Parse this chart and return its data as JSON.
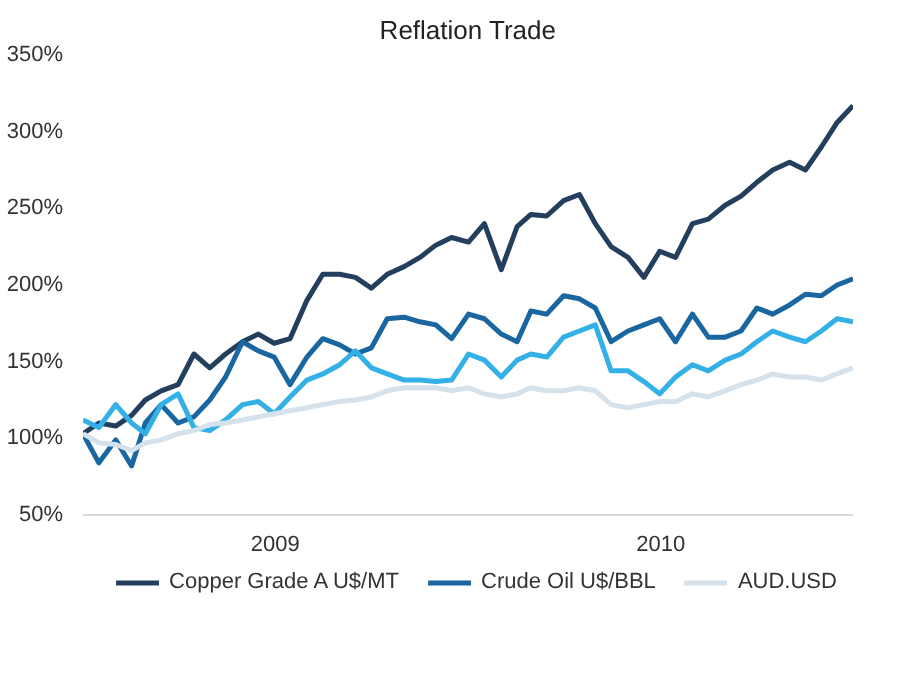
{
  "chart_data": {
    "type": "line",
    "title": "Reflation Trade",
    "x": [
      "2009-01-01",
      "2009-01-16",
      "2009-02-01",
      "2009-02-16",
      "2009-03-01",
      "2009-03-16",
      "2009-04-01",
      "2009-04-16",
      "2009-05-01",
      "2009-05-16",
      "2009-06-01",
      "2009-06-16",
      "2009-07-01",
      "2009-07-16",
      "2009-08-01",
      "2009-08-16",
      "2009-09-01",
      "2009-09-16",
      "2009-10-01",
      "2009-10-16",
      "2009-11-01",
      "2009-11-16",
      "2009-12-01",
      "2009-12-16",
      "2010-01-01",
      "2010-01-16",
      "2010-02-01",
      "2010-02-16",
      "2010-03-01",
      "2010-03-16",
      "2010-04-01",
      "2010-04-16",
      "2010-05-01",
      "2010-05-16",
      "2010-06-01",
      "2010-06-16",
      "2010-07-01",
      "2010-07-16",
      "2010-08-01",
      "2010-08-16",
      "2010-09-01",
      "2010-09-16",
      "2010-10-01",
      "2010-10-16",
      "2010-11-01",
      "2010-11-16",
      "2010-12-01",
      "2010-12-16",
      "2010-12-31"
    ],
    "series": [
      {
        "name": "Copper Grade A U$/MT",
        "color": "#243f5e",
        "values": [
          103,
          110,
          108,
          115,
          125,
          131,
          135,
          155,
          146,
          155,
          163,
          168,
          162,
          165,
          190,
          207,
          207,
          205,
          198,
          207,
          212,
          218,
          226,
          231,
          228,
          240,
          210,
          238,
          246,
          245,
          255,
          259,
          240,
          225,
          218,
          205,
          222,
          218,
          240,
          243,
          252,
          258,
          267,
          275,
          280,
          275,
          290,
          306,
          317
        ]
      },
      {
        "name": "Crude Oil U$/BBL",
        "color": "#1a66a0",
        "values": [
          103,
          84,
          99,
          82,
          110,
          122,
          110,
          114,
          125,
          140,
          163,
          157,
          153,
          135,
          153,
          165,
          161,
          155,
          159,
          178,
          179,
          176,
          174,
          165,
          181,
          178,
          168,
          163,
          183,
          181,
          193,
          191,
          185,
          163,
          170,
          174,
          178,
          163,
          181,
          166,
          166,
          170,
          185,
          181,
          187,
          194,
          193,
          200,
          204
        ]
      },
      {
        "color": "#33b0e6",
        "values": [
          112,
          107,
          122,
          110,
          103,
          122,
          129,
          107,
          105,
          112,
          122,
          124,
          116,
          127,
          138,
          142,
          148,
          157,
          146,
          142,
          138,
          138,
          137,
          138,
          155,
          151,
          140,
          151,
          155,
          153,
          166,
          170,
          174,
          144,
          144,
          137,
          129,
          140,
          148,
          144,
          151,
          155,
          163,
          170,
          166,
          163,
          170,
          178,
          176
        ]
      },
      {
        "name": "AUD.USD",
        "color": "#d5e2ec",
        "values": [
          103,
          97,
          96,
          92,
          97,
          99,
          103,
          105,
          109,
          110,
          112,
          114,
          116,
          118,
          120,
          122,
          124,
          125,
          127,
          131,
          133,
          133,
          133,
          131,
          133,
          129,
          127,
          129,
          133,
          131,
          131,
          133,
          131,
          122,
          120,
          122,
          124,
          124,
          129,
          127,
          131,
          135,
          138,
          142,
          140,
          140,
          138,
          142,
          146
        ]
      }
    ],
    "xlim": [
      "2009-01-01",
      "2010-12-31"
    ],
    "xticks": [
      {
        "value": "2009-07-02",
        "label": "2009"
      },
      {
        "value": "2010-07-02",
        "label": "2010"
      }
    ],
    "ylim": [
      50,
      350
    ],
    "yticks": [
      {
        "value": 50,
        "label": "50%"
      },
      {
        "value": 100,
        "label": "100%"
      },
      {
        "value": 150,
        "label": "150%"
      },
      {
        "value": 200,
        "label": "200%"
      },
      {
        "value": 250,
        "label": "250%"
      },
      {
        "value": 300,
        "label": "300%"
      },
      {
        "value": 350,
        "label": "350%"
      }
    ],
    "grid": false,
    "legend": "bottom",
    "line_style": "solid",
    "marker": "none"
  }
}
